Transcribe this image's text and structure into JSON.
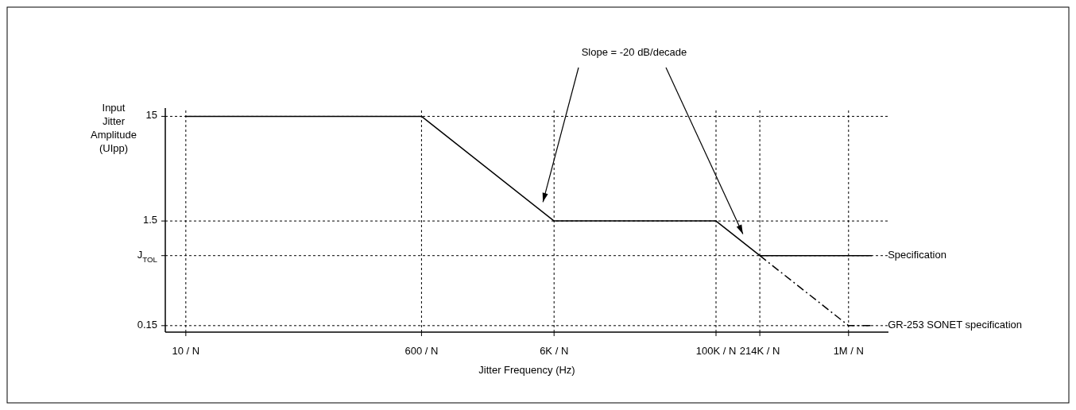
{
  "chart_data": {
    "type": "line",
    "xlabel": "Jitter Frequency (Hz)",
    "ylabel": "Input Jitter Amplitude (UIpp)",
    "log": "xy",
    "grid": true,
    "xlim": [
      7,
      2000000
    ],
    "ylim": [
      0.13,
      18
    ],
    "xticks": [
      {
        "value": 10,
        "label": "10 / N"
      },
      {
        "value": 600,
        "label": "600 / N"
      },
      {
        "value": 6000,
        "label": "6K / N"
      },
      {
        "value": 100000,
        "label": "100K / N"
      },
      {
        "value": 214000,
        "label": "214K / N"
      },
      {
        "value": 1000000,
        "label": "1M / N"
      }
    ],
    "yticks": [
      0.15,
      {
        "value": 0.7,
        "label": "J$_{TOL}$"
      },
      1.5,
      15
    ],
    "series": [
      {
        "name": "Specification",
        "color": "#000000",
        "x": [
          10,
          600,
          6000,
          100000,
          214000,
          1500000
        ],
        "values": [
          15,
          15,
          1.5,
          1.5,
          0.7,
          0.7
        ],
        "line_style": "solid"
      },
      {
        "name": "GR-253 SONET specification",
        "color": "#000000",
        "x": [
          214000,
          1000000,
          1500000
        ],
        "values": [
          0.7,
          0.15,
          0.15
        ],
        "line_style": "dashed"
      }
    ],
    "annotations": [
      "Slope =  -20 dB/decade"
    ]
  }
}
